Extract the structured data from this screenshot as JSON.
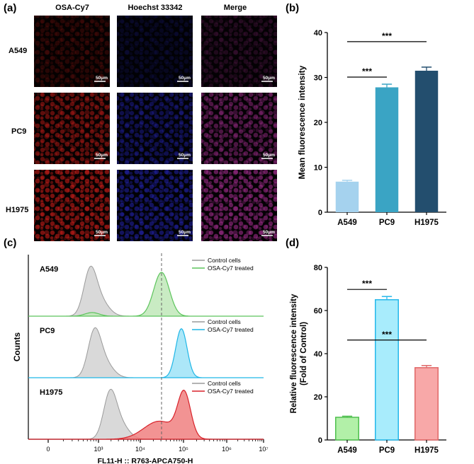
{
  "panels": {
    "a": {
      "label": "(a)",
      "column_headers": [
        "OSA-Cy7",
        "Hoechst 33342",
        "Merge"
      ],
      "row_labels": [
        "A549",
        "PC9",
        "H1975"
      ],
      "scale_bar_label": "50μm",
      "channel_colors": {
        "cy7": "#e0201c",
        "hoechst": "#2b2bd8",
        "merge": "#b0309a"
      },
      "intensity": [
        0.28,
        0.75,
        0.95
      ]
    },
    "c": {
      "label": "(c)",
      "y_label": "Counts",
      "x_label": "FL11-H :: R763-APCA750-H",
      "x_ticks": [
        "0",
        "10³",
        "10⁴",
        "10⁵",
        "10⁶",
        "10⁷"
      ],
      "legend_control": "Control cells",
      "legend_treated": "OSA-Cy7 treated",
      "control_color": "#9a9a9a",
      "rows": [
        {
          "name": "A549",
          "color": "#5cc45c",
          "fill": "#bfe8b8"
        },
        {
          "name": "PC9",
          "color": "#1fb6e6",
          "fill": "#9ee3f7"
        },
        {
          "name": "H1975",
          "color": "#d8222a",
          "fill": "#f08080"
        }
      ]
    }
  },
  "chart_data": [
    {
      "id": "b",
      "label": "(b)",
      "type": "bar",
      "categories": [
        "A549",
        "PC9",
        "H1975"
      ],
      "values": [
        6.8,
        27.8,
        31.5
      ],
      "errors": [
        0.3,
        0.7,
        0.8
      ],
      "colors": [
        "#a5d2ee",
        "#3aa4c4",
        "#234e6e"
      ],
      "ylabel": "Mean fluorescence intensity",
      "ylim": [
        0,
        40
      ],
      "yticks": [
        "0",
        "10",
        "20",
        "30",
        "40"
      ],
      "significance": [
        {
          "from": 0,
          "to": 1,
          "text": "***"
        },
        {
          "from": 0,
          "to": 2,
          "text": "***"
        }
      ]
    },
    {
      "id": "d",
      "label": "(d)",
      "type": "bar",
      "categories": [
        "A549",
        "PC9",
        "H1975"
      ],
      "values": [
        10.5,
        65.0,
        33.5
      ],
      "errors": [
        0.5,
        1.5,
        1.0
      ],
      "colors": [
        "#b2f0a8",
        "#a8ecfc",
        "#f8a8a8"
      ],
      "edges": [
        "#4fbf4f",
        "#25b8ea",
        "#e06868"
      ],
      "ylabel": "Relative fluorescence intensity",
      "ylabel2": "(Fold of Control)",
      "ylim": [
        0,
        80
      ],
      "yticks": [
        "0",
        "20",
        "40",
        "60",
        "80"
      ],
      "significance": [
        {
          "from": 0,
          "to": 1,
          "text": "***"
        },
        {
          "from": 0,
          "to": 2,
          "text": "***"
        }
      ]
    }
  ]
}
